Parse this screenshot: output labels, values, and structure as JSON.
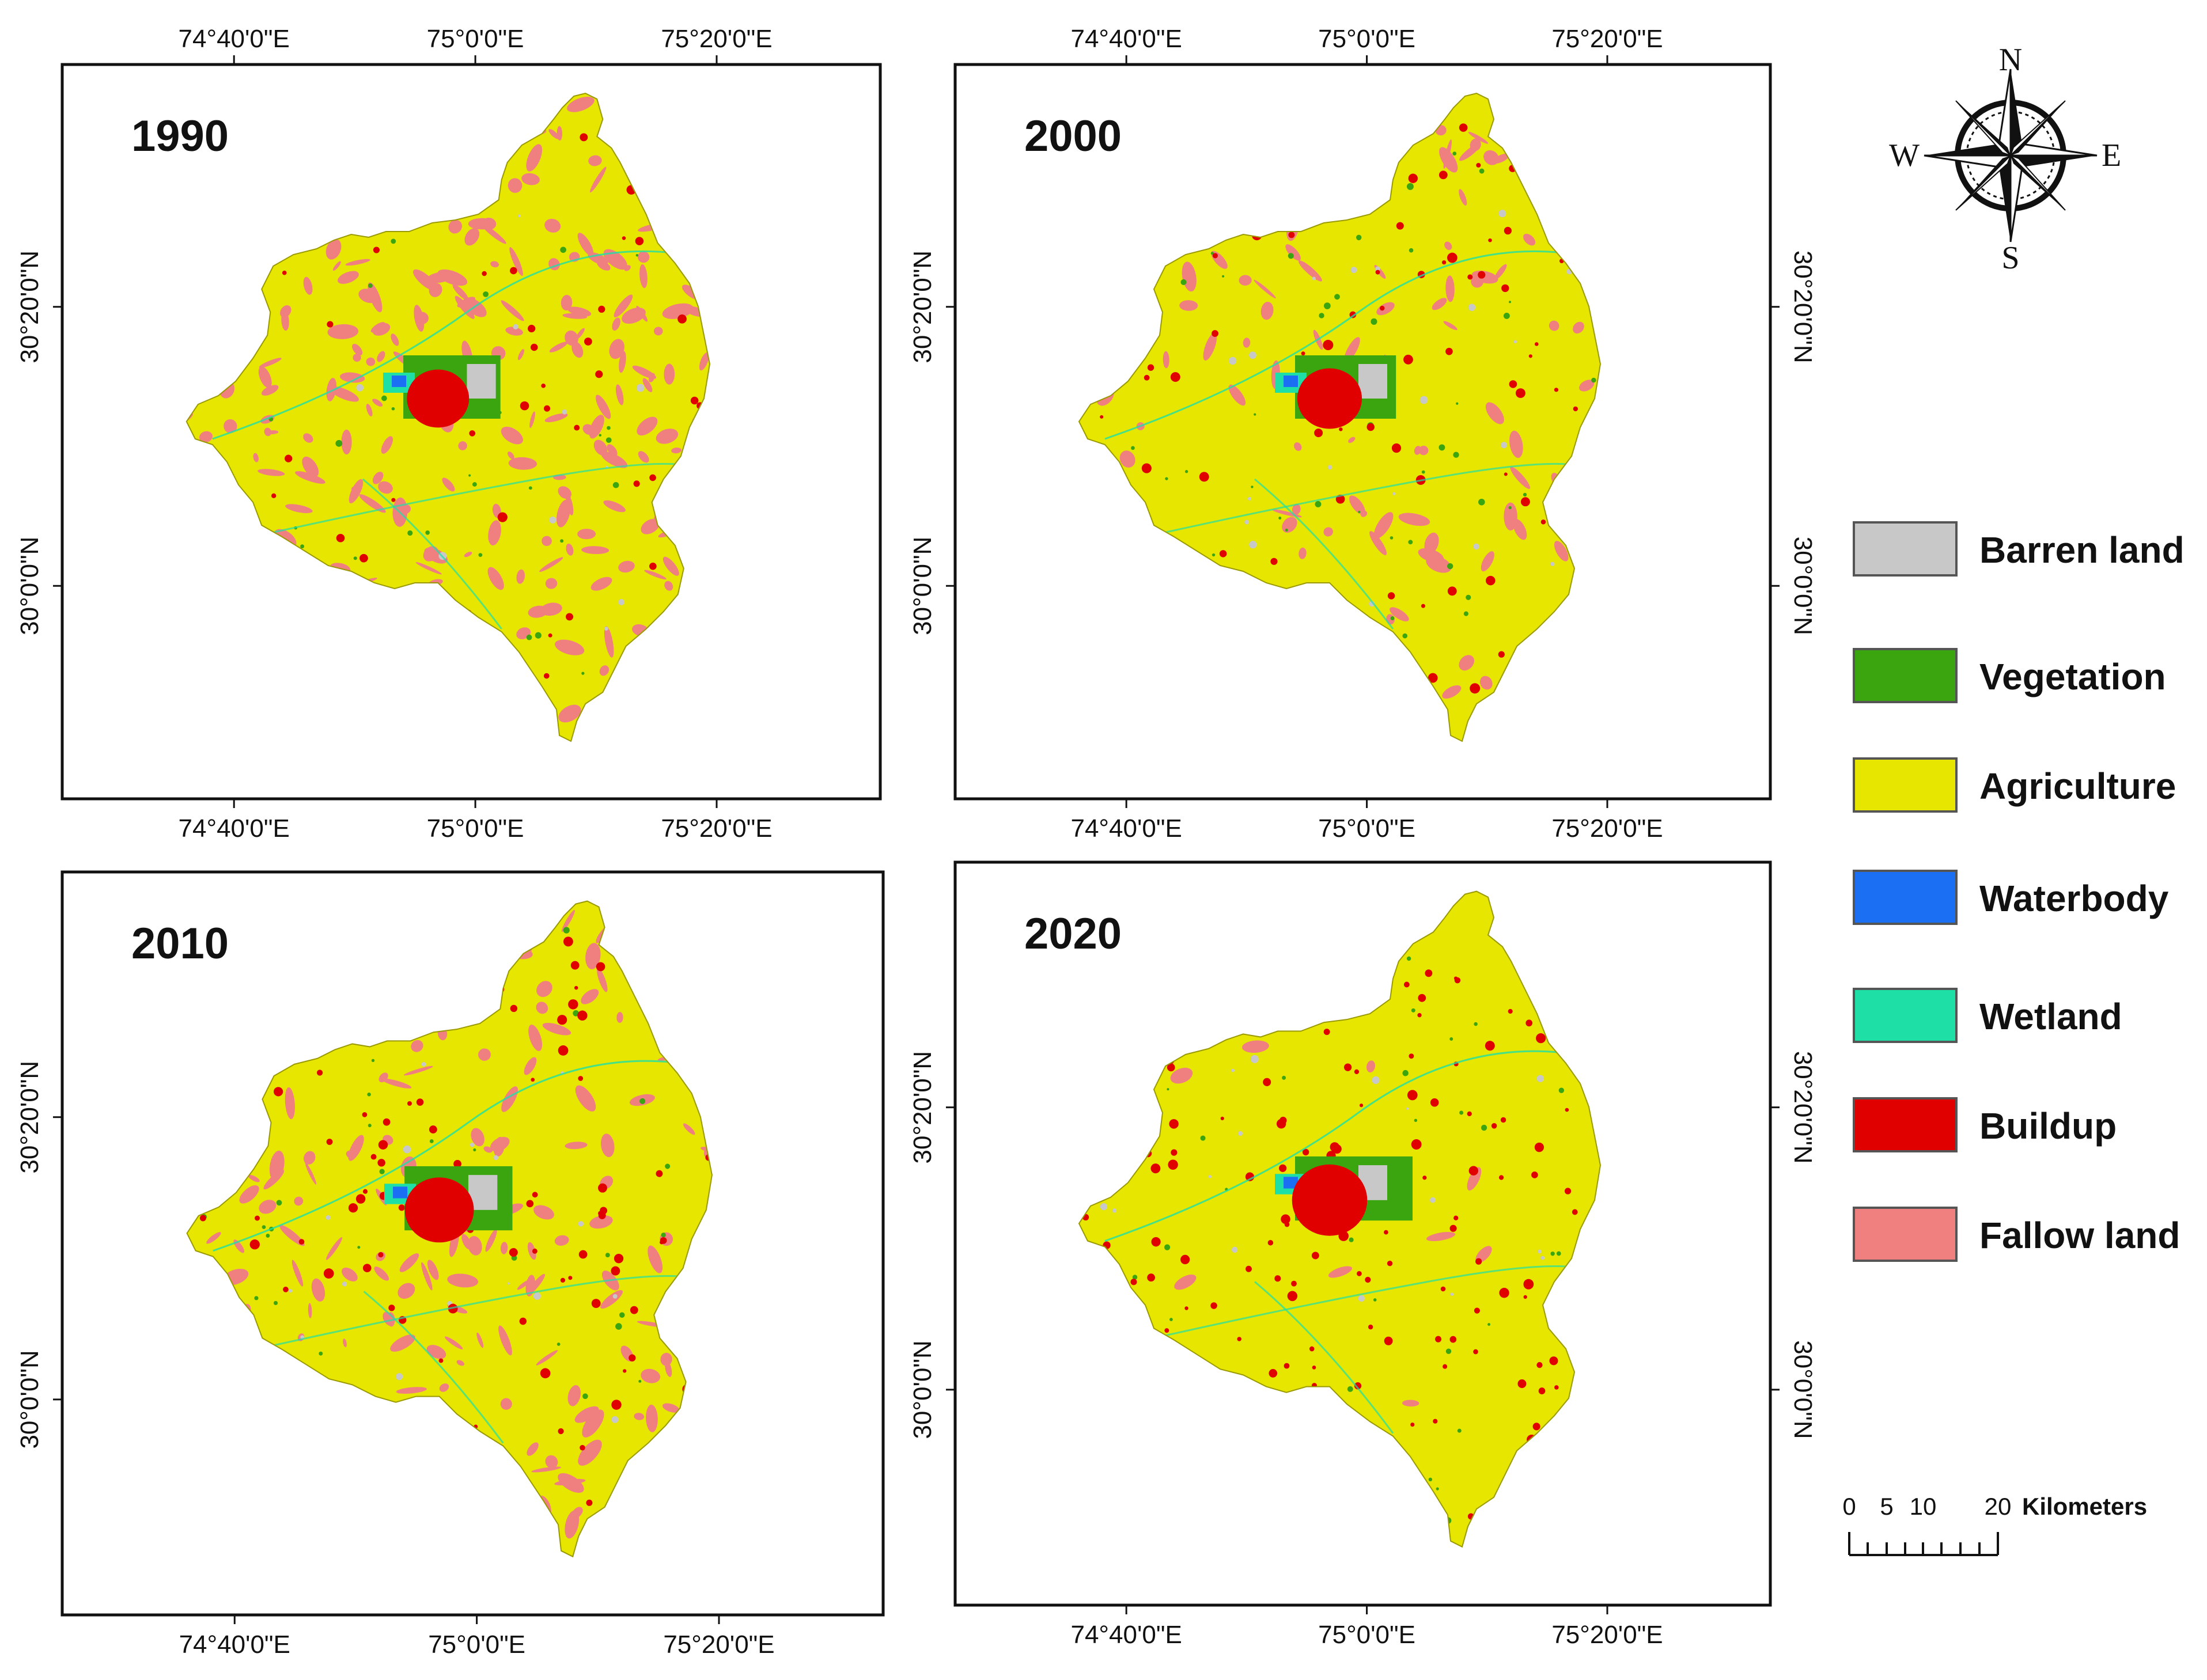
{
  "maps": [
    {
      "year": "1990",
      "top_ticks": [
        "74°40'0\"E",
        "75°0'0\"E",
        "75°20'0\"E"
      ],
      "bottom_ticks": [
        "74°40'0\"E",
        "75°0'0\"E",
        "75°20'0\"E"
      ],
      "left_ticks": [
        "30°20'0\"N",
        "30°0'0\"N"
      ]
    },
    {
      "year": "2000",
      "top_ticks": [
        "74°40'0\"E",
        "75°0'0\"E",
        "75°20'0\"E"
      ],
      "bottom_ticks": [
        "74°40'0\"E",
        "75°0'0\"E",
        "75°20'0\"E"
      ],
      "left_ticks": [
        "30°20'0\"N",
        "30°0'0\"N"
      ],
      "right_ticks": [
        "30°20'0\"N",
        "30°0'0\"N"
      ]
    },
    {
      "year": "2010",
      "bottom_ticks": [
        "74°40'0\"E",
        "75°0'0\"E",
        "75°20'0\"E"
      ],
      "left_ticks": [
        "30°20'0\"N",
        "30°0'0\"N"
      ]
    },
    {
      "year": "2020",
      "bottom_ticks": [
        "74°40'0\"E",
        "75°0'0\"E",
        "75°20'0\"E"
      ],
      "left_ticks": [
        "30°20'0\"N",
        "30°0'0\"N"
      ],
      "right_ticks": [
        "30°20'0\"N",
        "30°0'0\"N"
      ]
    }
  ],
  "legend": [
    {
      "label": "Barren land",
      "color": "#c8c8c8"
    },
    {
      "label": "Vegetation",
      "color": "#3aa50f"
    },
    {
      "label": "Agriculture",
      "color": "#e6e600"
    },
    {
      "label": "Waterbody",
      "color": "#1a6ff2"
    },
    {
      "label": "Wetland",
      "color": "#1ee0a6"
    },
    {
      "label": "Buildup",
      "color": "#e00000"
    },
    {
      "label": "Fallow land",
      "color": "#f08080"
    }
  ],
  "compass": {
    "north": "N",
    "south": "S",
    "east": "E",
    "west": "W"
  },
  "scale_bar": {
    "labels": [
      "0",
      "5",
      "10",
      "20"
    ],
    "unit": "Kilometers"
  },
  "class_density": {
    "1990": {
      "buildup": 0.1,
      "fallow": 0.36,
      "green": 0.06,
      "gray": 0.015
    },
    "2000": {
      "buildup": 0.14,
      "fallow": 0.16,
      "green": 0.1,
      "gray": 0.04
    },
    "2010": {
      "buildup": 0.2,
      "fallow": 0.26,
      "green": 0.06,
      "gray": 0.03
    },
    "2020": {
      "buildup": 0.3,
      "fallow": 0.03,
      "green": 0.08,
      "gray": 0.03
    }
  }
}
